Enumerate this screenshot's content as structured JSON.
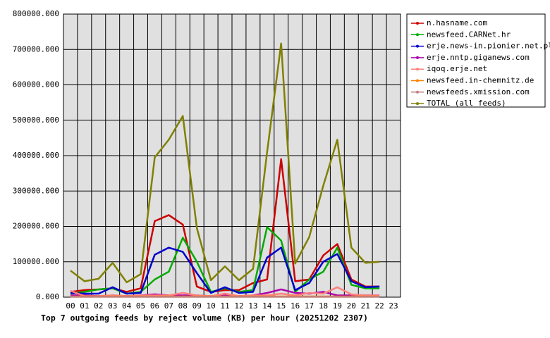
{
  "chart_data": {
    "type": "line",
    "title": "Top 7 outgoing feeds by reject volume (KB) per hour (20251202 2307)",
    "categories": [
      "00",
      "01",
      "02",
      "03",
      "04",
      "05",
      "06",
      "07",
      "08",
      "09",
      "10",
      "11",
      "12",
      "13",
      "14",
      "15",
      "16",
      "17",
      "18",
      "19",
      "20",
      "21",
      "22",
      "23"
    ],
    "ylim": [
      0,
      800000
    ],
    "yticks": [
      {
        "value": 0,
        "label": "0.000"
      },
      {
        "value": 100000,
        "label": "100000.000"
      },
      {
        "value": 200000,
        "label": "200000.000"
      },
      {
        "value": 300000,
        "label": "300000.000"
      },
      {
        "value": 400000,
        "label": "400000.000"
      },
      {
        "value": 500000,
        "label": "500000.000"
      },
      {
        "value": 600000,
        "label": "600000.000"
      },
      {
        "value": 700000,
        "label": "700000.000"
      },
      {
        "value": 800000,
        "label": "800000.000"
      }
    ],
    "grid": true,
    "legend": "upper right outside",
    "series": [
      {
        "name": "n.hasname.com",
        "color": "#cc0000",
        "values": [
          15000,
          20000,
          22000,
          25000,
          15000,
          25000,
          215000,
          232000,
          205000,
          30000,
          15000,
          20000,
          20000,
          40000,
          50000,
          390000,
          45000,
          50000,
          118000,
          150000,
          50000,
          30000,
          30000,
          null
        ]
      },
      {
        "name": "newsfeed.CARNet.hr",
        "color": "#00aa00",
        "values": [
          10000,
          15000,
          22000,
          25000,
          10000,
          15000,
          50000,
          72000,
          168000,
          100000,
          15000,
          25000,
          15000,
          20000,
          198000,
          160000,
          15000,
          50000,
          72000,
          140000,
          35000,
          25000,
          25000,
          null
        ]
      },
      {
        "name": "erje.news-in.pionier.net.pl",
        "color": "#0000cc",
        "values": [
          12000,
          10000,
          10000,
          28000,
          10000,
          12000,
          120000,
          140000,
          128000,
          68000,
          12000,
          28000,
          12000,
          15000,
          112000,
          140000,
          20000,
          40000,
          100000,
          122000,
          45000,
          28000,
          30000,
          null
        ]
      },
      {
        "name": "erje.nntp.giganews.com",
        "color": "#aa00aa",
        "values": [
          5000,
          5000,
          3000,
          5000,
          3000,
          5000,
          8000,
          5000,
          5000,
          5000,
          3000,
          5000,
          3000,
          5000,
          12000,
          22000,
          12000,
          10000,
          15000,
          5000,
          5000,
          5000,
          5000,
          null
        ]
      },
      {
        "name": "iqoq.erje.net",
        "color": "#ff8080",
        "values": [
          18000,
          3000,
          3000,
          5000,
          3000,
          5000,
          5000,
          5000,
          12000,
          5000,
          3000,
          10000,
          3000,
          5000,
          5000,
          10000,
          5000,
          12000,
          10000,
          28000,
          8000,
          5000,
          5000,
          null
        ]
      },
      {
        "name": "newsfeed.in-chemnitz.de",
        "color": "#ff8000",
        "values": [
          2000,
          2000,
          2000,
          2000,
          2000,
          2000,
          2000,
          2000,
          2000,
          2000,
          2000,
          2000,
          2000,
          2000,
          2000,
          2000,
          2000,
          2000,
          2000,
          2000,
          2000,
          2000,
          2000,
          null
        ]
      },
      {
        "name": "newsfeeds.xmission.com",
        "color": "#c08080",
        "values": [
          1000,
          1000,
          1000,
          1000,
          1000,
          1000,
          1000,
          1000,
          1000,
          1000,
          1000,
          1000,
          1000,
          1000,
          1000,
          1000,
          1000,
          1000,
          1000,
          1000,
          1000,
          1000,
          1000,
          null
        ]
      },
      {
        "name": "TOTAL (all feeds)",
        "color": "#808000",
        "values": [
          75000,
          45000,
          52000,
          97000,
          42000,
          65000,
          395000,
          445000,
          512000,
          195000,
          48000,
          87000,
          48000,
          80000,
          410000,
          717000,
          95000,
          170000,
          315000,
          445000,
          140000,
          97000,
          100000,
          null
        ]
      }
    ]
  }
}
